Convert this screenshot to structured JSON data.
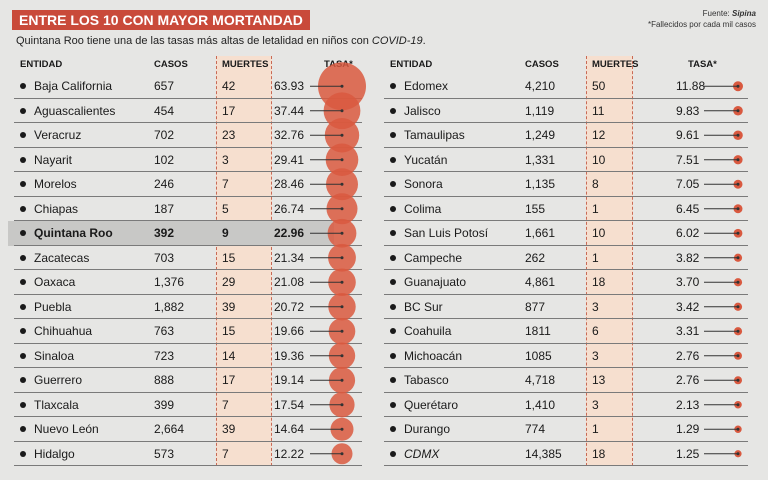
{
  "title": "ENTRE LOS 10 CON MAYOR MORTANDAD",
  "subtitle_main": "Quintana Roo tiene una de las tasas más altas de letalidad en niños con ",
  "subtitle_italic": "COVID-19",
  "subtitle_end": ".",
  "source_label": "Fuente: ",
  "source_name": "Sipina",
  "footnote": "*Fallecidos por cada mil casos",
  "headers": {
    "entidad": "ENTIDAD",
    "casos": "CASOS",
    "muertes": "MUERTES",
    "tasa": "TASA*"
  },
  "colors": {
    "accent": "#c94a3a",
    "bubble": "#d9593f",
    "muertes_bg": "#f6dfcf"
  },
  "chart_data": {
    "type": "table",
    "columns": [
      "Entidad",
      "Casos",
      "Muertes",
      "Tasa"
    ],
    "left": [
      {
        "entidad": "Baja California",
        "casos": "657",
        "muertes": "42",
        "tasa": "63.93"
      },
      {
        "entidad": "Aguascalientes",
        "casos": "454",
        "muertes": "17",
        "tasa": "37.44"
      },
      {
        "entidad": "Veracruz",
        "casos": "702",
        "muertes": "23",
        "tasa": "32.76"
      },
      {
        "entidad": "Nayarit",
        "casos": "102",
        "muertes": "3",
        "tasa": "29.41"
      },
      {
        "entidad": "Morelos",
        "casos": "246",
        "muertes": "7",
        "tasa": "28.46"
      },
      {
        "entidad": "Chiapas",
        "casos": "187",
        "muertes": "5",
        "tasa": "26.74"
      },
      {
        "entidad": "Quintana Roo",
        "casos": "392",
        "muertes": "9",
        "tasa": "22.96",
        "highlight": true
      },
      {
        "entidad": "Zacatecas",
        "casos": "703",
        "muertes": "15",
        "tasa": "21.34"
      },
      {
        "entidad": "Oaxaca",
        "casos": "1,376",
        "muertes": "29",
        "tasa": "21.08"
      },
      {
        "entidad": "Puebla",
        "casos": "1,882",
        "muertes": "39",
        "tasa": "20.72"
      },
      {
        "entidad": "Chihuahua",
        "casos": "763",
        "muertes": "15",
        "tasa": "19.66"
      },
      {
        "entidad": "Sinaloa",
        "casos": "723",
        "muertes": "14",
        "tasa": "19.36"
      },
      {
        "entidad": "Guerrero",
        "casos": "888",
        "muertes": "17",
        "tasa": "19.14"
      },
      {
        "entidad": "Tlaxcala",
        "casos": "399",
        "muertes": "7",
        "tasa": "17.54"
      },
      {
        "entidad": "Nuevo León",
        "casos": "2,664",
        "muertes": "39",
        "tasa": "14.64"
      },
      {
        "entidad": "Hidalgo",
        "casos": "573",
        "muertes": "7",
        "tasa": "12.22"
      }
    ],
    "right": [
      {
        "entidad": "Edomex",
        "casos": "4,210",
        "muertes": "50",
        "tasa": "11.88"
      },
      {
        "entidad": "Jalisco",
        "casos": "1,119",
        "muertes": "11",
        "tasa": "9.83"
      },
      {
        "entidad": "Tamaulipas",
        "casos": "1,249",
        "muertes": "12",
        "tasa": "9.61"
      },
      {
        "entidad": "Yucatán",
        "casos": "1,331",
        "muertes": "10",
        "tasa": "7.51"
      },
      {
        "entidad": "Sonora",
        "casos": "1,135",
        "muertes": "8",
        "tasa": "7.05"
      },
      {
        "entidad": "Colima",
        "casos": "155",
        "muertes": "1",
        "tasa": "6.45"
      },
      {
        "entidad": "San Luis Potosí",
        "casos": "1,661",
        "muertes": "10",
        "tasa": "6.02"
      },
      {
        "entidad": "Campeche",
        "casos": "262",
        "muertes": "1",
        "tasa": "3.82"
      },
      {
        "entidad": "Guanajuato",
        "casos": "4,861",
        "muertes": "18",
        "tasa": "3.70"
      },
      {
        "entidad": "BC Sur",
        "casos": "877",
        "muertes": "3",
        "tasa": "3.42"
      },
      {
        "entidad": "Coahuila",
        "casos": "1811",
        "muertes": "6",
        "tasa": "3.31"
      },
      {
        "entidad": "Michoacán",
        "casos": "1085",
        "muertes": "3",
        "tasa": "2.76"
      },
      {
        "entidad": "Tabasco",
        "casos": "4,718",
        "muertes": "13",
        "tasa": "2.76"
      },
      {
        "entidad": "Querétaro",
        "casos": "1,410",
        "muertes": "3",
        "tasa": "2.13"
      },
      {
        "entidad": "Durango",
        "casos": "774",
        "muertes": "1",
        "tasa": "1.29"
      },
      {
        "entidad": "CDMX",
        "casos": "14,385",
        "muertes": "18",
        "tasa": "1.25",
        "italic": true
      }
    ]
  }
}
